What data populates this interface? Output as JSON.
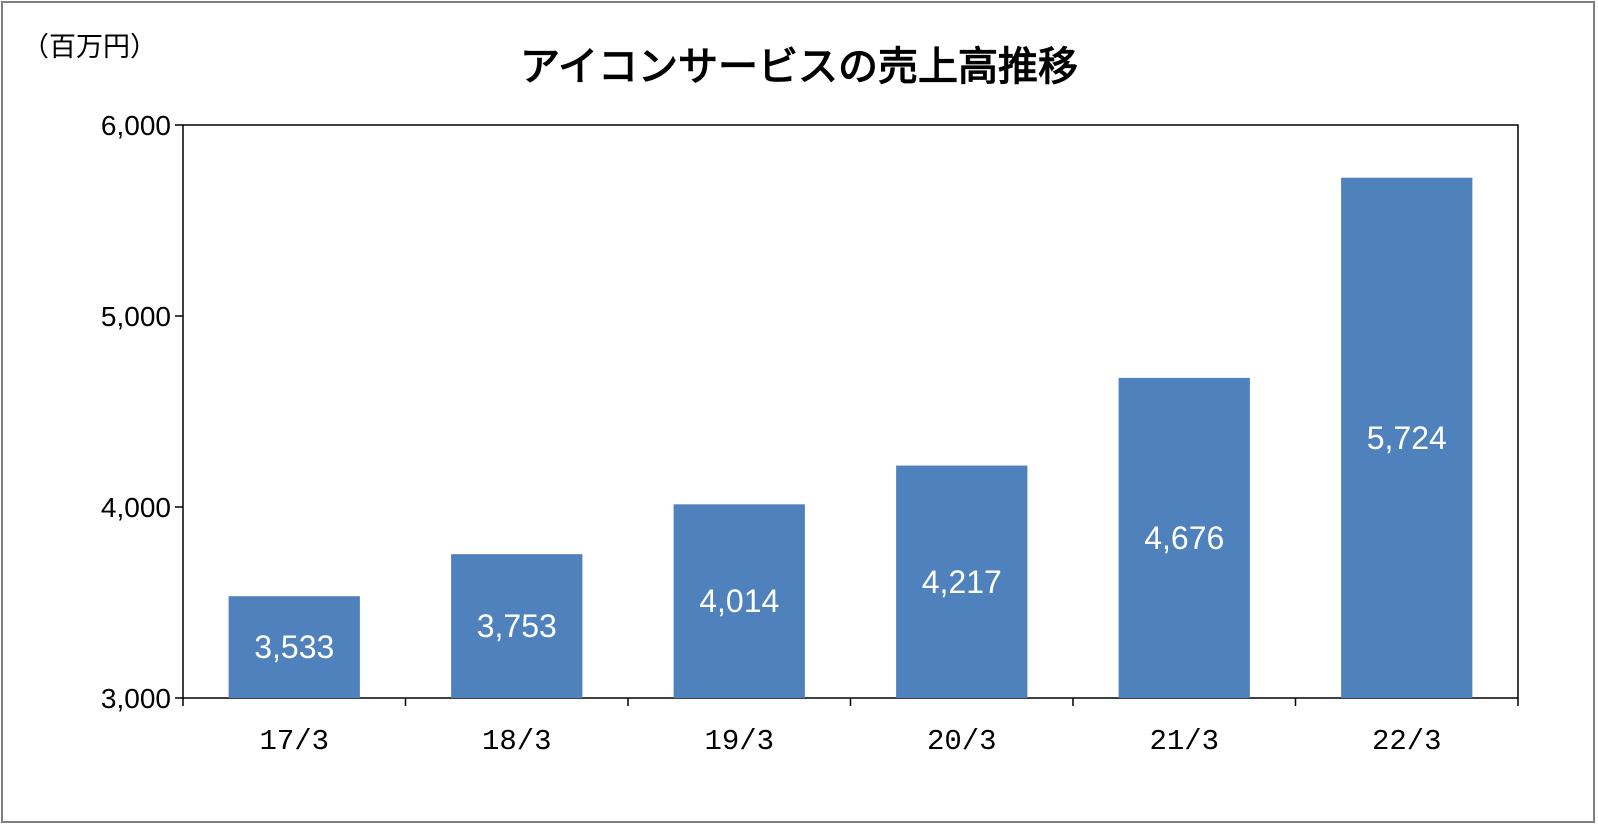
{
  "chart_data": {
    "type": "bar",
    "title": "アイコンサービスの売上高推移",
    "unit_label": "（百万円）",
    "categories": [
      "17/3",
      "18/3",
      "19/3",
      "20/3",
      "21/3",
      "22/3"
    ],
    "values": [
      3533,
      3753,
      4014,
      4217,
      4676,
      5724
    ],
    "value_labels": [
      "3,533",
      "3,753",
      "4,014",
      "4,217",
      "4,676",
      "5,724"
    ],
    "ylim": [
      3000,
      6000
    ],
    "yticks": [
      3000,
      4000,
      5000,
      6000
    ],
    "ytick_labels": [
      "3,000",
      "4,000",
      "5,000",
      "6,000"
    ],
    "grid": false,
    "bar_color": "#4f81bd",
    "axis_color": "#000000"
  }
}
